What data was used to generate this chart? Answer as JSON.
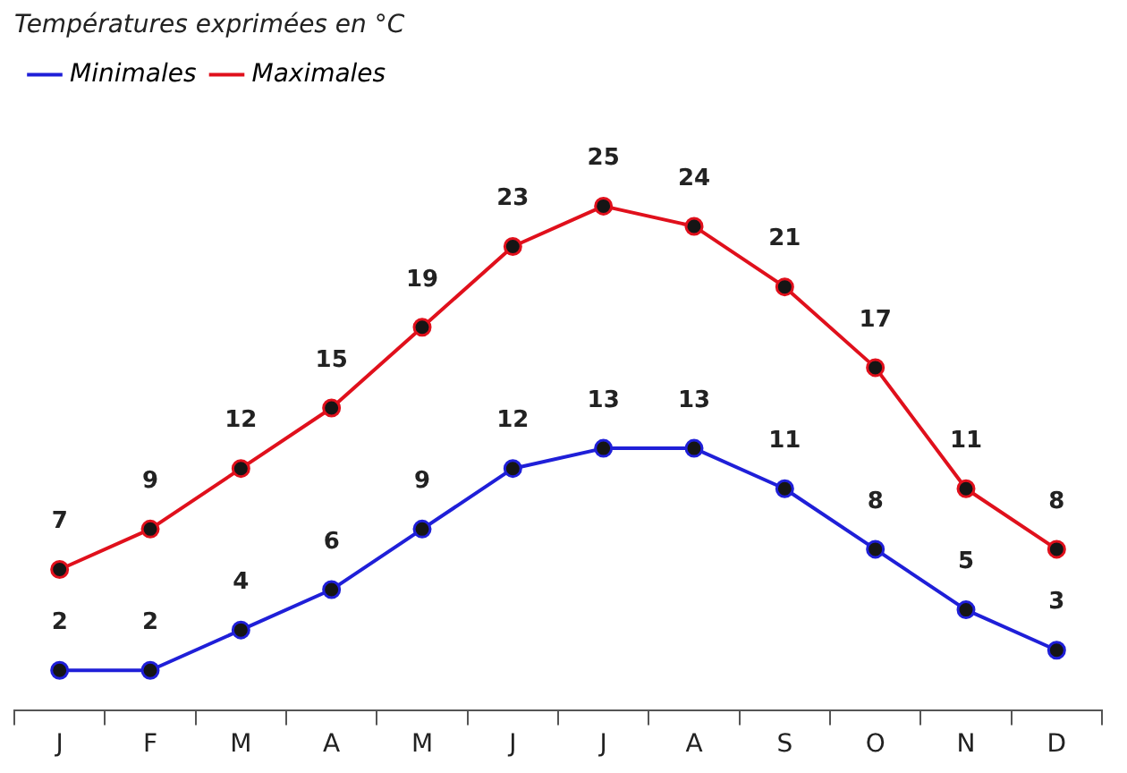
{
  "chart_data": {
    "type": "line",
    "title": "Températures exprimées en °C",
    "categories": [
      "J",
      "F",
      "M",
      "A",
      "M",
      "J",
      "J",
      "A",
      "S",
      "O",
      "N",
      "D"
    ],
    "series": [
      {
        "name": "Minimales",
        "color": "#1f1fd8",
        "values": [
          2,
          2,
          4,
          6,
          9,
          12,
          13,
          13,
          11,
          8,
          5,
          3
        ]
      },
      {
        "name": "Maximales",
        "color": "#e0101c",
        "values": [
          7,
          9,
          12,
          15,
          19,
          23,
          25,
          24,
          21,
          17,
          11,
          8
        ]
      }
    ],
    "tick_labels": "x",
    "data_labels": true,
    "legend": "top left",
    "marker": "circle",
    "line_style": "solid"
  }
}
